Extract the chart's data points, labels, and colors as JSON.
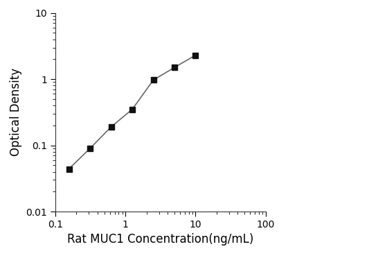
{
  "x_values": [
    0.156,
    0.313,
    0.625,
    1.25,
    2.5,
    5.0,
    10.0
  ],
  "y_values": [
    0.044,
    0.09,
    0.19,
    0.35,
    0.97,
    1.5,
    2.3
  ],
  "xlabel": "Rat MUC1 Concentration(ng/mL)",
  "ylabel": "Optical Density",
  "xlim": [
    0.1,
    100
  ],
  "ylim": [
    0.01,
    10
  ],
  "line_color": "#666666",
  "marker": "s",
  "marker_color": "#111111",
  "marker_size": 6,
  "linewidth": 1.2,
  "background_color": "#ffffff",
  "spine_color": "#333333",
  "xlabel_fontsize": 12,
  "ylabel_fontsize": 12,
  "tick_fontsize": 10,
  "xtick_labels": [
    "0.1",
    "1",
    "10",
    "100"
  ],
  "xtick_positions": [
    0.1,
    1,
    10,
    100
  ],
  "ytick_labels": [
    "0.01",
    "0.1",
    "1",
    "10"
  ],
  "ytick_positions": [
    0.01,
    0.1,
    1,
    10
  ]
}
